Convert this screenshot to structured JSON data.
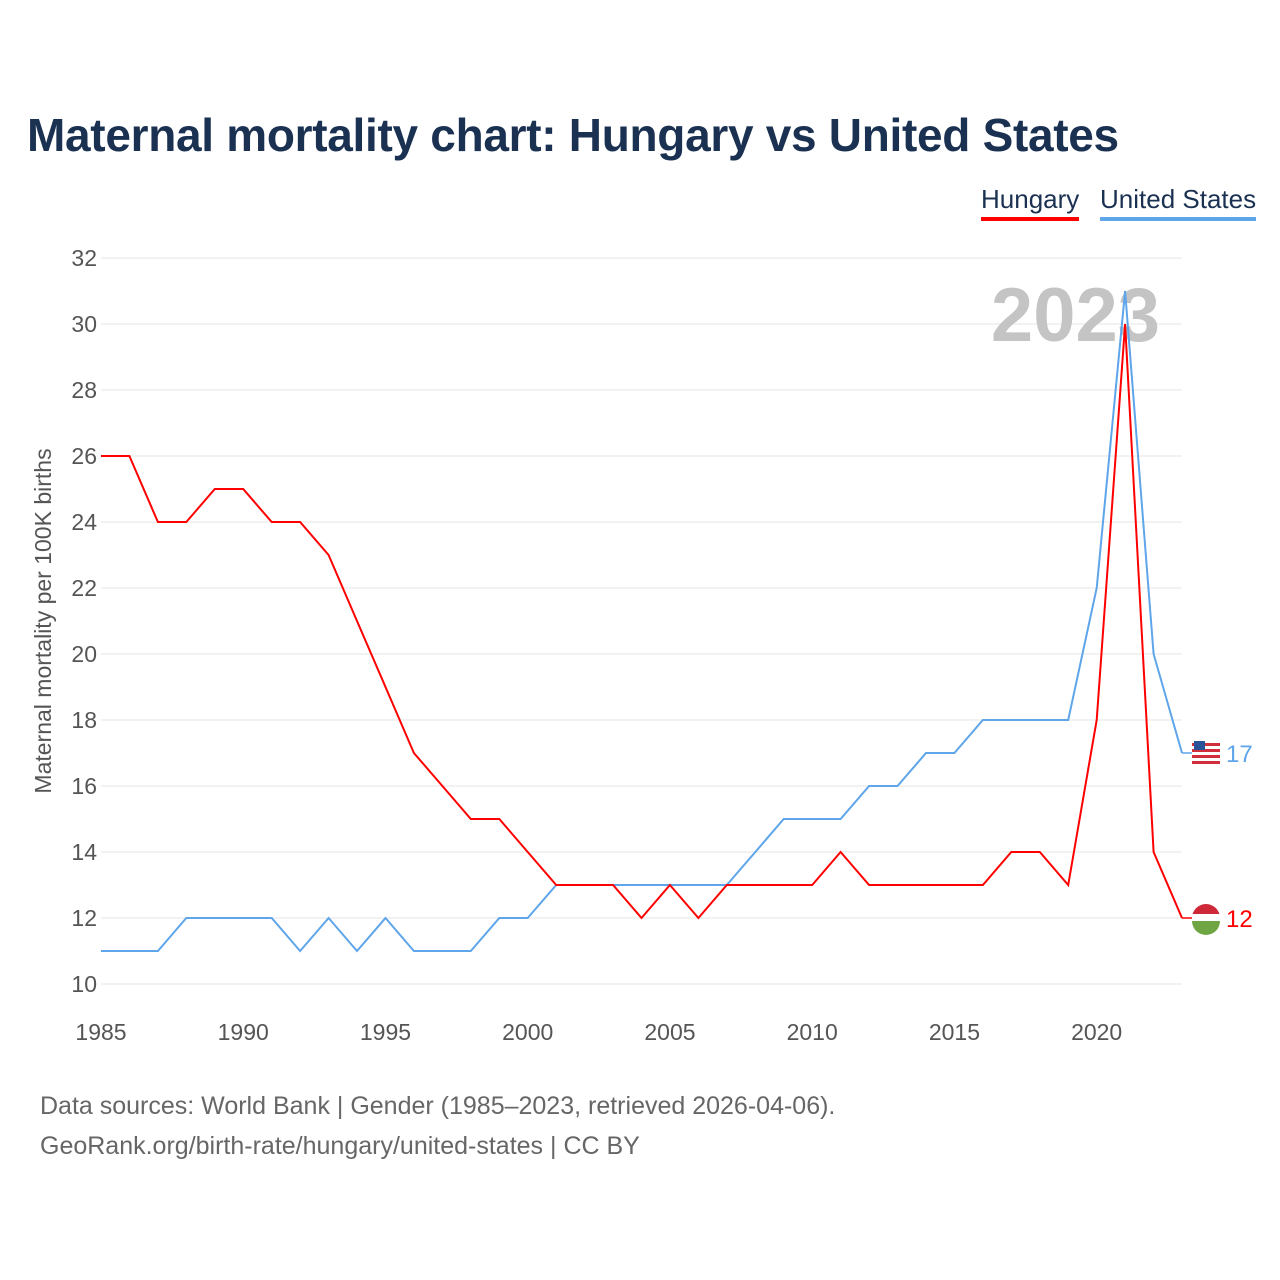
{
  "title": "Maternal mortality chart: Hungary vs United States",
  "legend": [
    "Hungary",
    "United States"
  ],
  "year_watermark": "2023",
  "footer": {
    "line1": "Data sources: World Bank | Gender (1985–2023, retrieved 2026-04-06).",
    "line2": "GeoRank.org/birth-rate/hungary/united-states | CC BY"
  },
  "colors": {
    "hungary": "#ff0000",
    "united_states": "#5ea5ea",
    "title": "#1b3152"
  },
  "chart_data": {
    "type": "line",
    "title": "Maternal mortality chart: Hungary vs United States",
    "xlabel": "",
    "ylabel": "Maternal mortality per 100K births",
    "xlim": [
      1985,
      2023
    ],
    "ylim": [
      10,
      32
    ],
    "xticks": [
      1985,
      1990,
      1995,
      2000,
      2005,
      2010,
      2015,
      2020
    ],
    "yticks": [
      10,
      12,
      14,
      16,
      18,
      20,
      22,
      24,
      26,
      28,
      30,
      32
    ],
    "grid": true,
    "legend_position": "top-right",
    "x": [
      1985,
      1986,
      1987,
      1988,
      1989,
      1990,
      1991,
      1992,
      1993,
      1994,
      1995,
      1996,
      1997,
      1998,
      1999,
      2000,
      2001,
      2002,
      2003,
      2004,
      2005,
      2006,
      2007,
      2008,
      2009,
      2010,
      2011,
      2012,
      2013,
      2014,
      2015,
      2016,
      2017,
      2018,
      2019,
      2020,
      2021,
      2022,
      2023
    ],
    "series": [
      {
        "name": "Hungary",
        "color": "#ff0000",
        "end_label": "12",
        "values": [
          26,
          26,
          24,
          24,
          25,
          25,
          24,
          24,
          23,
          21,
          19,
          17,
          16,
          15,
          15,
          14,
          13,
          13,
          13,
          12,
          13,
          12,
          13,
          13,
          13,
          13,
          14,
          13,
          13,
          13,
          13,
          13,
          14,
          14,
          13,
          18,
          30,
          14,
          12
        ]
      },
      {
        "name": "United States",
        "color": "#5ea5ea",
        "end_label": "17",
        "values": [
          11,
          11,
          11,
          12,
          12,
          12,
          12,
          11,
          12,
          11,
          12,
          11,
          11,
          11,
          12,
          12,
          13,
          13,
          13,
          13,
          13,
          13,
          13,
          14,
          15,
          15,
          15,
          16,
          16,
          17,
          17,
          18,
          18,
          18,
          18,
          22,
          31,
          20,
          17
        ]
      }
    ]
  }
}
